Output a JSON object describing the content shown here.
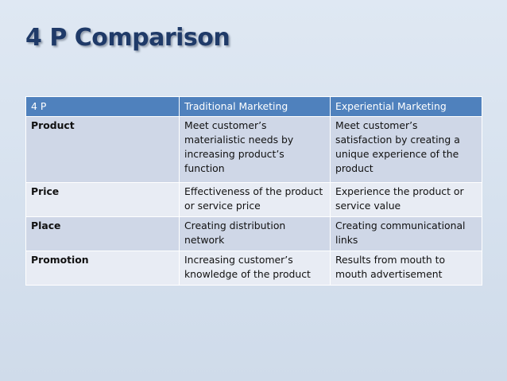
{
  "slide": {
    "title": "4 P Comparison"
  },
  "table": {
    "headers": [
      "4 P",
      "Traditional Marketing",
      "Experiential Marketing"
    ],
    "rows": [
      {
        "p": "Product",
        "traditional": "Meet customer’s materialistic needs by increasing product’s function",
        "experiential": "Meet customer’s satisfaction by creating a unique experience of the product"
      },
      {
        "p": "Price",
        "traditional": "Effectiveness of the product or service price",
        "experiential": "Experience the product or service value"
      },
      {
        "p": "Place",
        "traditional": "Creating distribution network",
        "experiential": "Creating communicational links"
      },
      {
        "p": "Promotion",
        "traditional": "Increasing customer’s knowledge of the product",
        "experiential": "Results from mouth to mouth advertisement"
      }
    ]
  },
  "colors": {
    "title": "#1f3a68",
    "header_bg": "#4f81bd",
    "row_band_dark": "#cfd7e7",
    "row_band_light": "#e8ecf4",
    "background": "#dae4f0"
  }
}
